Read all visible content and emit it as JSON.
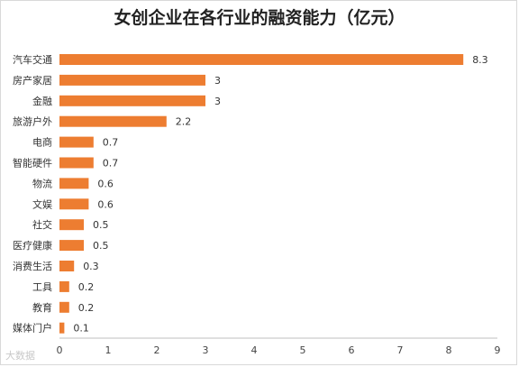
{
  "chart_data": {
    "type": "bar",
    "orientation": "horizontal",
    "title": "女创企业在各行业的融资能力（亿元）",
    "categories": [
      "汽车交通",
      "房产家居",
      "金融",
      "旅游户外",
      "电商",
      "智能硬件",
      "物流",
      "文娱",
      "社交",
      "医疗健康",
      "消费生活",
      "工具",
      "教育",
      "媒体门户"
    ],
    "values": [
      8.3,
      3,
      3,
      2.2,
      0.7,
      0.7,
      0.6,
      0.6,
      0.5,
      0.5,
      0.3,
      0.2,
      0.2,
      0.1
    ],
    "value_labels": [
      "8.3",
      "3",
      "3",
      "2.2",
      "0.7",
      "0.7",
      "0.6",
      "0.6",
      "0.5",
      "0.5",
      "0.3",
      "0.2",
      "0.2",
      "0.1"
    ],
    "xlim": [
      0,
      9
    ],
    "xticks": [
      "0",
      "1",
      "2",
      "3",
      "4",
      "5",
      "6",
      "7",
      "8",
      "9"
    ],
    "grid": false,
    "bar_color": "#ed7d31"
  },
  "watermark": "大数据"
}
